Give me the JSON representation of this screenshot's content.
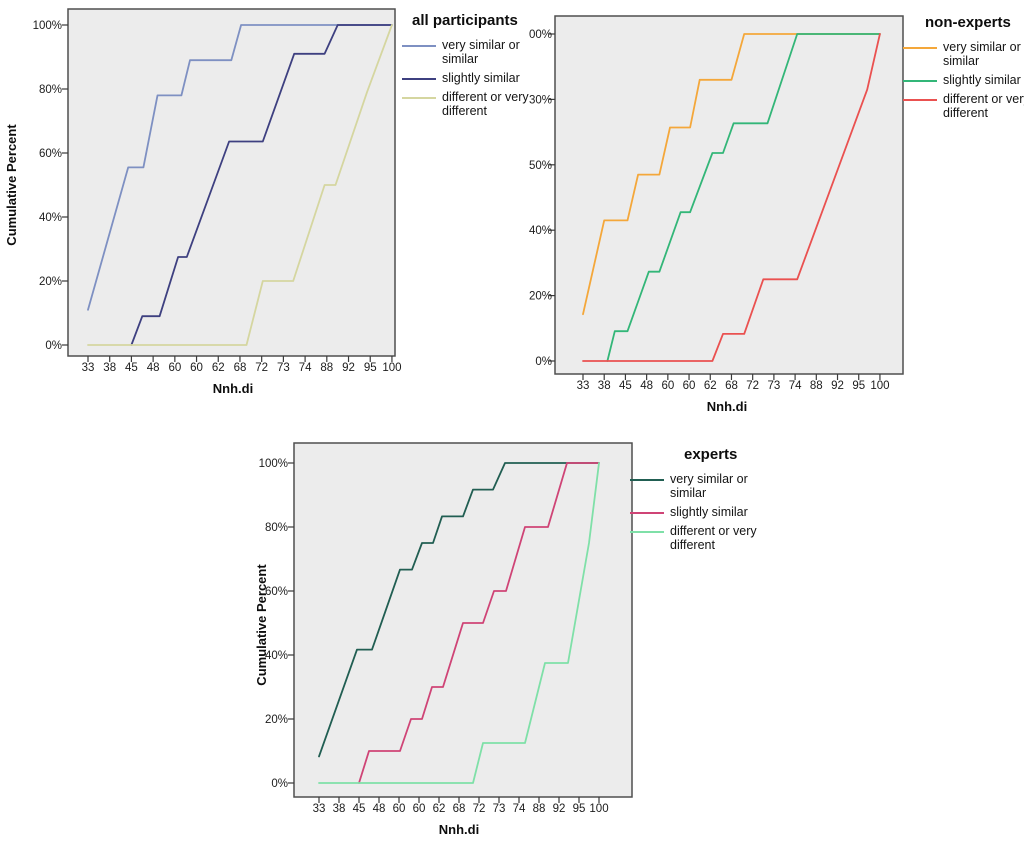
{
  "figure": {
    "background": "#ffffff",
    "plot_background": "#ececec",
    "plot_border_color": "#4f4f4f"
  },
  "chart_data": [
    {
      "type": "line",
      "title": "all participants",
      "xlabel": "Nnh.di",
      "ylabel": "Cumulative Percent",
      "ylim": [
        0,
        100
      ],
      "grid": false,
      "legend_position": "right",
      "x_tick_labels": [
        "33",
        "38",
        "45",
        "48",
        "60",
        "60",
        "62",
        "68",
        "72",
        "73",
        "74",
        "88",
        "92",
        "95",
        "100"
      ],
      "y_tick_labels": [
        "100%",
        "80%",
        "60%",
        "40%",
        "20%",
        "0%"
      ],
      "series": [
        {
          "name": "very similar  or similar",
          "label_lines": [
            "very similar  or",
            "similar"
          ],
          "color": "#7e90c2",
          "points_tick_pct": [
            [
              0,
              11
            ],
            [
              1.85,
              55.5
            ],
            [
              2.55,
              55.5
            ],
            [
              3.2,
              78
            ],
            [
              4.3,
              78
            ],
            [
              4.7,
              89
            ],
            [
              6.6,
              89
            ],
            [
              7.05,
              100
            ],
            [
              14,
              100
            ]
          ]
        },
        {
          "name": "slightly similar",
          "label_lines": [
            "slightly similar"
          ],
          "color": "#3e4080",
          "points_tick_pct": [
            [
              2,
              0
            ],
            [
              2.5,
              9
            ],
            [
              3.3,
              9
            ],
            [
              4.15,
              27.5
            ],
            [
              4.55,
              27.5
            ],
            [
              6.5,
              63.6
            ],
            [
              8.05,
              63.6
            ],
            [
              9.5,
              91
            ],
            [
              10.9,
              91
            ],
            [
              11.5,
              100
            ],
            [
              14,
              100
            ]
          ]
        },
        {
          "name": "different or very different",
          "label_lines": [
            "different or very",
            "different"
          ],
          "color": "#d5d6a0",
          "points_tick_pct": [
            [
              0,
              0
            ],
            [
              7.3,
              0
            ],
            [
              8.05,
              20
            ],
            [
              9.45,
              20
            ],
            [
              10.9,
              50
            ],
            [
              11.4,
              50
            ],
            [
              12.85,
              79
            ],
            [
              14,
              100
            ]
          ]
        }
      ]
    },
    {
      "type": "line",
      "title": "non-experts",
      "xlabel": "Nnh.di",
      "ylabel": "",
      "ylim": [
        0,
        100
      ],
      "grid": false,
      "legend_position": "right",
      "x_tick_labels": [
        "33",
        "38",
        "45",
        "48",
        "60",
        "60",
        "62",
        "68",
        "72",
        "73",
        "74",
        "88",
        "92",
        "95",
        "100"
      ],
      "y_tick_labels": [
        "00%",
        "30%",
        "50%",
        "40%",
        "20%",
        "0%"
      ],
      "series": [
        {
          "name": "very similar  or similar",
          "label_lines": [
            "very similar  or",
            "similar"
          ],
          "color": "#f4a73a",
          "points_tick_pct": [
            [
              0,
              14.3
            ],
            [
              1,
              43
            ],
            [
              2.1,
              43
            ],
            [
              2.6,
              57
            ],
            [
              3.6,
              57
            ],
            [
              4.1,
              71.4
            ],
            [
              5.05,
              71.4
            ],
            [
              5.5,
              86
            ],
            [
              7,
              86
            ],
            [
              7.6,
              100
            ],
            [
              14,
              100
            ]
          ]
        },
        {
          "name": "slightly similar",
          "label_lines": [
            "slightly similar"
          ],
          "color": "#33b678",
          "points_tick_pct": [
            [
              1.15,
              0
            ],
            [
              1.5,
              9.1
            ],
            [
              2.1,
              9.1
            ],
            [
              3.1,
              27.3
            ],
            [
              3.6,
              27.3
            ],
            [
              4.6,
              45.5
            ],
            [
              5.05,
              45.5
            ],
            [
              6.1,
              63.6
            ],
            [
              6.6,
              63.6
            ],
            [
              7.1,
              72.7
            ],
            [
              8.7,
              72.7
            ],
            [
              10.1,
              100
            ],
            [
              14,
              100
            ]
          ]
        },
        {
          "name": "different or very different",
          "label_lines": [
            "different or very",
            "different"
          ],
          "color": "#ea5150",
          "points_tick_pct": [
            [
              0,
              0
            ],
            [
              6.1,
              0
            ],
            [
              6.6,
              8.3
            ],
            [
              7.6,
              8.3
            ],
            [
              8.5,
              25
            ],
            [
              10.1,
              25
            ],
            [
              13.4,
              83
            ],
            [
              14,
              100
            ]
          ]
        }
      ]
    },
    {
      "type": "line",
      "title": "experts",
      "xlabel": "Nnh.di",
      "ylabel": "Cumulative Percent",
      "ylim": [
        0,
        100
      ],
      "grid": false,
      "legend_position": "right",
      "x_tick_labels": [
        "33",
        "38",
        "45",
        "48",
        "60",
        "60",
        "62",
        "68",
        "72",
        "73",
        "74",
        "88",
        "92",
        "95",
        "100"
      ],
      "y_tick_labels": [
        "100%",
        "80%",
        "60%",
        "40%",
        "20%",
        "0%"
      ],
      "series": [
        {
          "name": "very similar  or similar",
          "label_lines": [
            "very similar  or",
            "similar"
          ],
          "color": "#215e52",
          "points_tick_pct": [
            [
              0,
              8.3
            ],
            [
              1.9,
              41.7
            ],
            [
              2.65,
              41.7
            ],
            [
              4.05,
              66.7
            ],
            [
              4.65,
              66.7
            ],
            [
              5.15,
              75
            ],
            [
              5.7,
              75
            ],
            [
              6.15,
              83.3
            ],
            [
              7.2,
              83.3
            ],
            [
              7.7,
              91.7
            ],
            [
              8.7,
              91.7
            ],
            [
              9.3,
              100
            ],
            [
              14,
              100
            ]
          ]
        },
        {
          "name": "slightly similar",
          "label_lines": [
            "slightly similar"
          ],
          "color": "#cf4476",
          "points_tick_pct": [
            [
              2,
              0
            ],
            [
              2.5,
              10
            ],
            [
              4.05,
              10
            ],
            [
              4.6,
              20
            ],
            [
              5.15,
              20
            ],
            [
              5.65,
              30
            ],
            [
              6.2,
              30
            ],
            [
              7.2,
              50
            ],
            [
              8.2,
              50
            ],
            [
              8.75,
              60
            ],
            [
              9.35,
              60
            ],
            [
              10.3,
              80
            ],
            [
              11.45,
              80
            ],
            [
              12.4,
              100
            ],
            [
              14,
              100
            ]
          ]
        },
        {
          "name": "different or very different",
          "label_lines": [
            "different or very",
            "different"
          ],
          "color": "#7fe0a8",
          "points_tick_pct": [
            [
              0,
              0
            ],
            [
              7.7,
              0
            ],
            [
              8.2,
              12.5
            ],
            [
              10.3,
              12.5
            ],
            [
              11.3,
              37.5
            ],
            [
              12.45,
              37.5
            ],
            [
              13.5,
              75
            ],
            [
              14,
              100
            ]
          ]
        }
      ]
    }
  ]
}
